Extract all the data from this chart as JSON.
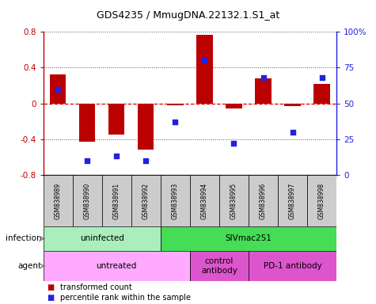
{
  "title": "GDS4235 / MmugDNA.22132.1.S1_at",
  "samples": [
    "GSM838989",
    "GSM838990",
    "GSM838991",
    "GSM838992",
    "GSM838993",
    "GSM838994",
    "GSM838995",
    "GSM838996",
    "GSM838997",
    "GSM838998"
  ],
  "bar_values": [
    0.32,
    -0.43,
    -0.35,
    -0.52,
    -0.02,
    0.77,
    -0.06,
    0.28,
    -0.03,
    0.22
  ],
  "scatter_values": [
    60,
    10,
    13,
    10,
    37,
    80,
    22,
    68,
    30,
    68
  ],
  "ylim": [
    -0.8,
    0.8
  ],
  "y2lim": [
    0,
    100
  ],
  "bar_color": "#bb0000",
  "scatter_color": "#2222dd",
  "dotted_line_color": "#555555",
  "zero_line_color": "#dd0000",
  "infection_groups": [
    {
      "label": "uninfected",
      "start": 0,
      "end": 4,
      "color": "#aaeebb"
    },
    {
      "label": "SIVmac251",
      "start": 4,
      "end": 10,
      "color": "#44dd55"
    }
  ],
  "agent_groups": [
    {
      "label": "untreated",
      "start": 0,
      "end": 5,
      "color": "#ffaaff"
    },
    {
      "label": "control\nantibody",
      "start": 5,
      "end": 7,
      "color": "#dd55cc"
    },
    {
      "label": "PD-1 antibody",
      "start": 7,
      "end": 10,
      "color": "#dd55cc"
    }
  ],
  "legend_items": [
    {
      "label": "transformed count",
      "color": "#bb0000"
    },
    {
      "label": "percentile rank within the sample",
      "color": "#2222dd"
    }
  ],
  "infection_label": "infection",
  "agent_label": "agent",
  "yticks": [
    -0.8,
    -0.4,
    0.0,
    0.4,
    0.8
  ],
  "ytick_labels": [
    "-0.8",
    "-0.4",
    "0",
    "0.4",
    "0.8"
  ],
  "y2ticks": [
    0,
    25,
    50,
    75,
    100
  ],
  "y2tick_labels": [
    "0",
    "25",
    "50",
    "75",
    "100%"
  ]
}
